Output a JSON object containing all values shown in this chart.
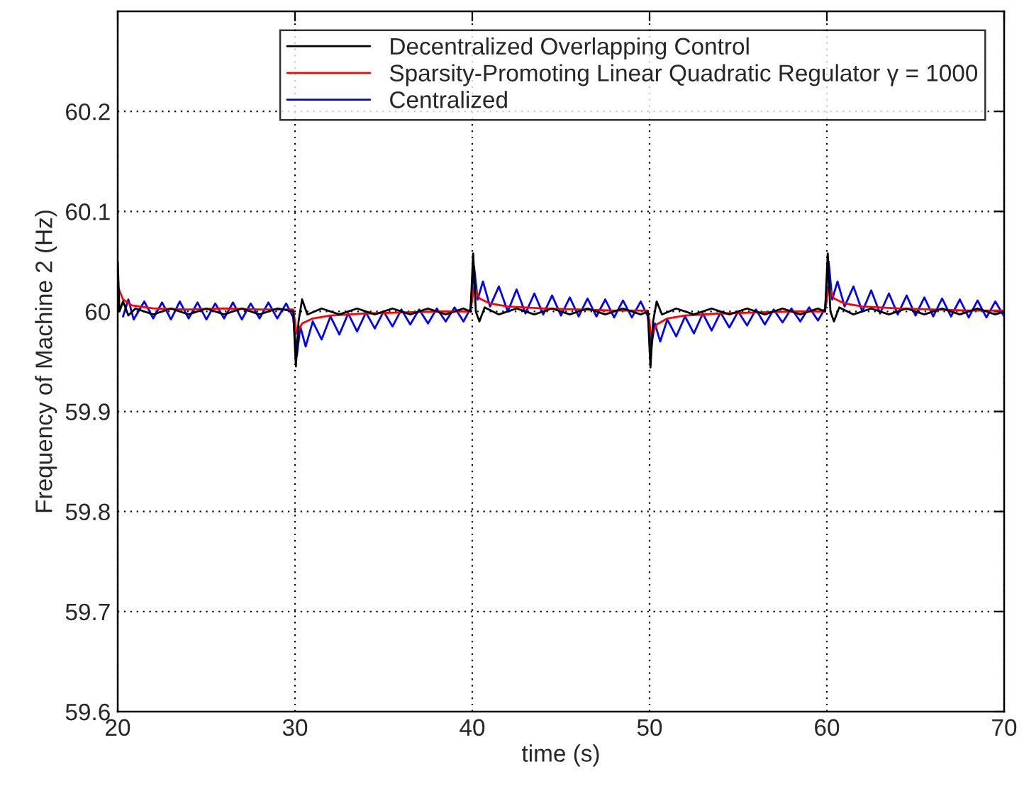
{
  "chart_data": {
    "type": "line",
    "xlabel": "time (s)",
    "ylabel": "Frequency of Machine 2 (Hz)",
    "xlim": [
      20,
      70
    ],
    "ylim": [
      59.6,
      60.3
    ],
    "xticks": [
      20,
      30,
      40,
      50,
      60,
      70
    ],
    "yticks": [
      59.6,
      59.7,
      59.8,
      59.9,
      60,
      60.1,
      60.2
    ],
    "grid": true,
    "legend": "top right",
    "line_style": "solid",
    "marker": "none",
    "series": [
      {
        "name": "Decentralized Overlapping Control",
        "color": "#000000",
        "x": [
          20,
          20.1,
          20.3,
          20.6,
          21,
          22,
          23,
          24,
          25,
          26,
          27,
          28,
          29,
          29.9,
          30.05,
          30.2,
          30.4,
          30.7,
          31.5,
          32.5,
          33.5,
          34.5,
          35.5,
          36.5,
          37.5,
          38.5,
          39.5,
          39.9,
          40.05,
          40.2,
          40.4,
          40.7,
          41.5,
          42.5,
          43.5,
          44.5,
          45.5,
          46.5,
          47.5,
          48.5,
          49.5,
          49.9,
          50.05,
          50.2,
          50.4,
          50.7,
          51.5,
          52.5,
          53.5,
          54.5,
          55.5,
          56.5,
          57.5,
          58.5,
          59.5,
          59.9,
          60.05,
          60.2,
          60.4,
          60.7,
          61.5,
          62.5,
          63.5,
          64.5,
          65.5,
          66.5,
          67.5,
          68.5,
          69.5,
          70
        ],
        "values": [
          60.05,
          60.0,
          60.01,
          59.996,
          60.003,
          59.997,
          60.003,
          59.997,
          60.003,
          59.997,
          60.003,
          59.997,
          60.003,
          60.0,
          59.945,
          59.99,
          60.012,
          59.997,
          60.003,
          59.997,
          60.003,
          59.997,
          60.003,
          59.997,
          60.003,
          59.997,
          60.003,
          60.0,
          60.058,
          60.0,
          59.99,
          60.004,
          59.997,
          60.003,
          59.997,
          60.003,
          59.997,
          60.003,
          59.997,
          60.003,
          59.997,
          60.0,
          59.944,
          59.99,
          60.01,
          59.997,
          60.003,
          59.997,
          60.003,
          59.997,
          60.003,
          59.997,
          60.003,
          59.997,
          60.003,
          60.0,
          60.058,
          60.0,
          59.99,
          60.004,
          59.997,
          60.003,
          59.997,
          60.003,
          59.997,
          60.003,
          59.997,
          60.003,
          59.997,
          60.0
        ]
      },
      {
        "name": "Sparsity-Promoting Linear Quadratic Regulator γ = 1000",
        "color": "#ff0000",
        "x": [
          20,
          20.3,
          20.8,
          22,
          24,
          26,
          28,
          29.9,
          30.1,
          30.4,
          31,
          32,
          34,
          36,
          38,
          39.9,
          40.1,
          40.4,
          41,
          42,
          44,
          46,
          48,
          49.9,
          50.1,
          50.4,
          51,
          52,
          54,
          56,
          58,
          59.9,
          60.1,
          60.4,
          61,
          62,
          64,
          66,
          68,
          70
        ],
        "values": [
          60.025,
          60.012,
          60.006,
          60.003,
          60.002,
          60.003,
          60.002,
          60.002,
          59.978,
          59.988,
          59.993,
          59.996,
          59.998,
          59.999,
          60.0,
          60.0,
          60.025,
          60.013,
          60.008,
          60.005,
          60.003,
          60.002,
          60.001,
          60.001,
          59.975,
          59.987,
          59.993,
          59.996,
          59.998,
          59.999,
          60.0,
          60.0,
          60.025,
          60.013,
          60.008,
          60.005,
          60.003,
          60.002,
          60.001,
          60.001
        ]
      },
      {
        "name": "Centralized",
        "color": "#0000ff",
        "x": [
          20.3,
          20.6,
          20.9,
          21.5,
          22,
          22.5,
          23,
          23.5,
          24,
          24.5,
          25,
          25.5,
          26,
          26.5,
          27,
          27.5,
          28,
          28.5,
          29,
          29.5,
          29.9,
          30.1,
          30.3,
          30.6,
          31,
          31.5,
          32,
          32.5,
          33,
          33.5,
          34,
          34.5,
          35,
          35.5,
          36,
          36.5,
          37,
          37.5,
          38,
          38.5,
          39,
          39.5,
          39.9,
          40.1,
          40.3,
          40.6,
          41,
          41.5,
          42,
          42.5,
          43,
          43.5,
          44,
          44.5,
          45,
          45.5,
          46,
          46.5,
          47,
          47.5,
          48,
          48.5,
          49,
          49.5,
          49.9,
          50.1,
          50.3,
          50.6,
          51,
          51.5,
          52,
          52.5,
          53,
          53.5,
          54,
          54.5,
          55,
          55.5,
          56,
          56.5,
          57,
          57.5,
          58,
          58.5,
          59,
          59.5,
          59.9,
          60.1,
          60.3,
          60.6,
          61,
          61.5,
          62,
          62.5,
          63,
          63.5,
          64,
          64.5,
          65,
          65.5,
          66,
          66.5,
          67,
          67.5,
          68,
          68.5,
          69,
          69.5,
          70
        ],
        "values": [
          59.995,
          60.012,
          59.992,
          60.01,
          59.993,
          60.009,
          59.992,
          60.01,
          59.993,
          60.009,
          59.992,
          60.008,
          59.993,
          60.009,
          59.992,
          60.008,
          59.993,
          60.009,
          59.993,
          60.008,
          59.994,
          59.955,
          59.985,
          59.965,
          59.99,
          59.972,
          59.995,
          59.977,
          59.998,
          59.98,
          59.999,
          59.983,
          60.0,
          59.985,
          60.002,
          59.987,
          60.002,
          59.988,
          60.003,
          59.99,
          60.004,
          59.99,
          60.003,
          60.045,
          60.012,
          60.03,
          60.005,
          60.025,
          60.0,
          60.022,
          59.998,
          60.018,
          59.997,
          60.016,
          59.996,
          60.014,
          59.995,
          60.013,
          59.995,
          60.012,
          59.994,
          60.011,
          59.994,
          60.01,
          59.995,
          59.965,
          59.988,
          59.97,
          59.992,
          59.975,
          59.995,
          59.978,
          59.998,
          59.981,
          59.999,
          59.984,
          60.0,
          59.986,
          60.002,
          59.987,
          60.002,
          59.989,
          60.003,
          59.99,
          60.004,
          59.991,
          60.003,
          60.05,
          60.012,
          60.03,
          60.005,
          60.025,
          60.0,
          60.021,
          59.998,
          60.018,
          59.997,
          60.016,
          59.996,
          60.014,
          59.995,
          60.013,
          59.995,
          60.012,
          59.994,
          60.011,
          59.994,
          60.01,
          59.995
        ]
      }
    ]
  }
}
